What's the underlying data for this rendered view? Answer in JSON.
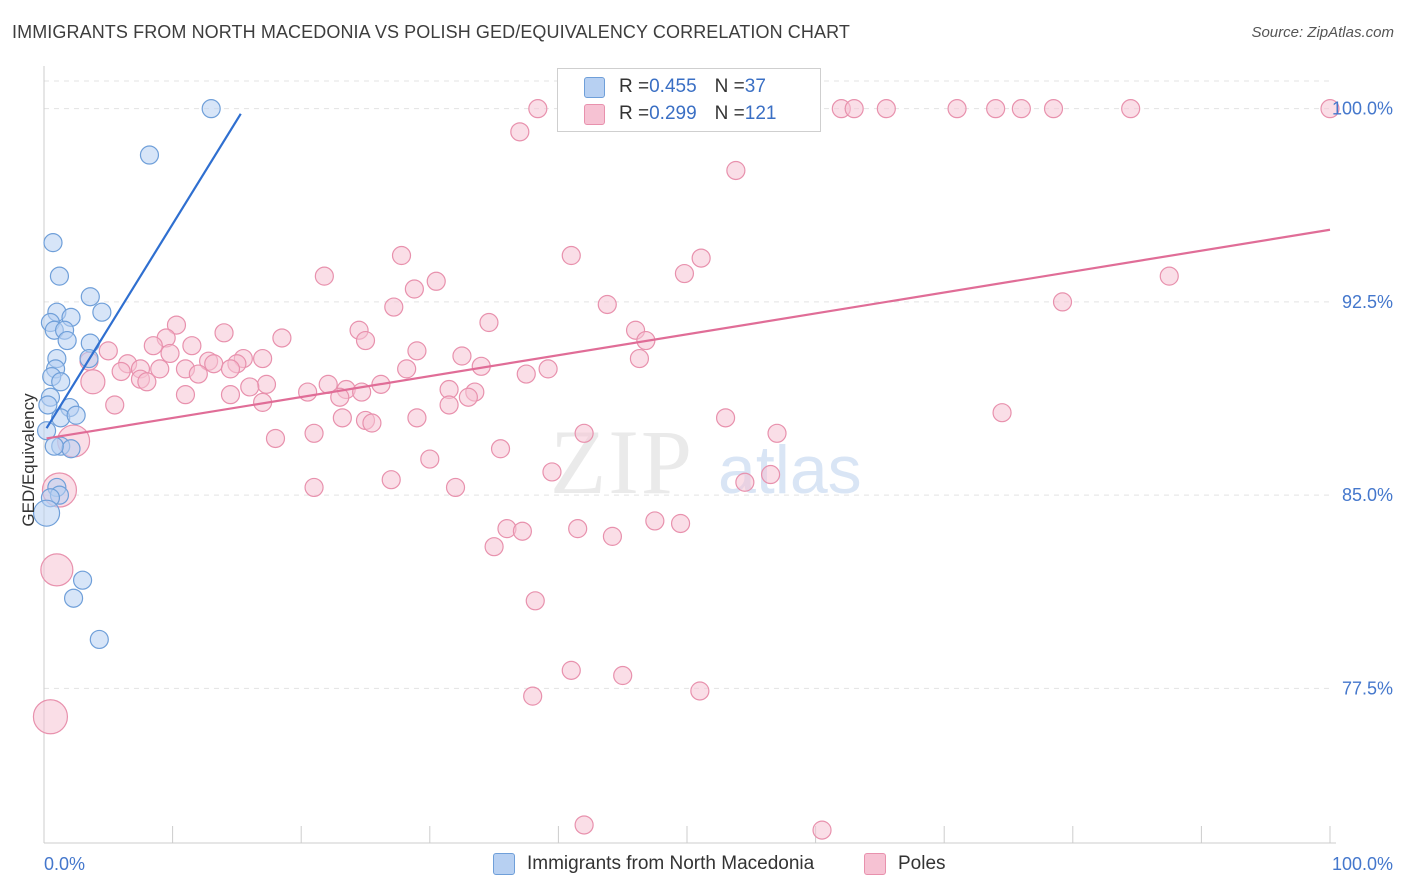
{
  "title": "IMMIGRANTS FROM NORTH MACEDONIA VS POLISH GED/EQUIVALENCY CORRELATION CHART",
  "source": "Source: ZipAtlas.com",
  "watermark": {
    "zip": "ZIP",
    "atlas": "atlas"
  },
  "colors": {
    "blue_fill": "#b7d0f2",
    "blue_stroke": "#6f9fd9",
    "blue_line": "#2f6fd0",
    "pink_fill": "#f6c2d3",
    "pink_stroke": "#e891ad",
    "pink_line": "#e06d97",
    "axis_label": "#4477cc"
  },
  "stats": {
    "blue": {
      "r_label": "R = ",
      "r": "0.455",
      "n_label": "N = ",
      "n": "37"
    },
    "pink": {
      "r_label": "R = ",
      "r": "0.299",
      "n_label": "N = ",
      "n": "121"
    }
  },
  "chart_data": {
    "type": "scatter",
    "title": "IMMIGRANTS FROM NORTH MACEDONIA VS POLISH GED/EQUIVALENCY CORRELATION CHART",
    "xlabel": "",
    "ylabel": "GED/Equivalency",
    "xlim": [
      0,
      100
    ],
    "ylim": [
      71.5,
      101.5
    ],
    "x_tick_labels": [
      "0.0%",
      "100.0%"
    ],
    "y_ticks": [
      77.5,
      85.0,
      92.5,
      100.0
    ],
    "y_tick_labels": [
      "77.5%",
      "85.0%",
      "92.5%",
      "100.0%"
    ],
    "grid": true,
    "legend_position": "bottom-center",
    "series": [
      {
        "name": "Immigrants from North Macedonia",
        "color": "#6f9fd9",
        "trend": {
          "x": [
            0.2,
            15.3
          ],
          "y": [
            87.6,
            99.8
          ]
        },
        "points": [
          {
            "x": 13.0,
            "y": 100.0,
            "s": 9
          },
          {
            "x": 8.2,
            "y": 98.2,
            "s": 9
          },
          {
            "x": 0.7,
            "y": 94.8,
            "s": 9
          },
          {
            "x": 1.2,
            "y": 93.5,
            "s": 9
          },
          {
            "x": 3.6,
            "y": 92.7,
            "s": 9
          },
          {
            "x": 1.0,
            "y": 92.1,
            "s": 9
          },
          {
            "x": 2.1,
            "y": 91.9,
            "s": 9
          },
          {
            "x": 4.5,
            "y": 92.1,
            "s": 9
          },
          {
            "x": 0.5,
            "y": 91.7,
            "s": 9
          },
          {
            "x": 0.8,
            "y": 91.4,
            "s": 9
          },
          {
            "x": 1.6,
            "y": 91.4,
            "s": 9
          },
          {
            "x": 1.8,
            "y": 91.0,
            "s": 9
          },
          {
            "x": 3.6,
            "y": 90.9,
            "s": 9
          },
          {
            "x": 1.0,
            "y": 90.3,
            "s": 9
          },
          {
            "x": 3.5,
            "y": 90.3,
            "s": 9
          },
          {
            "x": 0.9,
            "y": 89.9,
            "s": 9
          },
          {
            "x": 0.6,
            "y": 89.6,
            "s": 9
          },
          {
            "x": 1.3,
            "y": 89.4,
            "s": 9
          },
          {
            "x": 0.5,
            "y": 88.8,
            "s": 9
          },
          {
            "x": 0.3,
            "y": 88.5,
            "s": 9
          },
          {
            "x": 2.0,
            "y": 88.4,
            "s": 9
          },
          {
            "x": 1.3,
            "y": 88.0,
            "s": 9
          },
          {
            "x": 2.5,
            "y": 88.1,
            "s": 9
          },
          {
            "x": 0.2,
            "y": 87.5,
            "s": 9
          },
          {
            "x": 1.3,
            "y": 86.9,
            "s": 9
          },
          {
            "x": 2.1,
            "y": 86.8,
            "s": 9
          },
          {
            "x": 0.8,
            "y": 86.9,
            "s": 9
          },
          {
            "x": 1.0,
            "y": 85.3,
            "s": 9
          },
          {
            "x": 1.2,
            "y": 85.0,
            "s": 9
          },
          {
            "x": 0.5,
            "y": 84.9,
            "s": 9
          },
          {
            "x": 0.2,
            "y": 84.3,
            "s": 13
          },
          {
            "x": 3.0,
            "y": 81.7,
            "s": 9
          },
          {
            "x": 2.3,
            "y": 81.0,
            "s": 9
          },
          {
            "x": 4.3,
            "y": 79.4,
            "s": 9
          }
        ]
      },
      {
        "name": "Poles",
        "color": "#e891ad",
        "trend": {
          "x": [
            0.2,
            100.0
          ],
          "y": [
            87.2,
            95.3
          ]
        },
        "points": [
          {
            "x": 38.4,
            "y": 100.0,
            "s": 9
          },
          {
            "x": 47.5,
            "y": 100.0,
            "s": 9
          },
          {
            "x": 48.0,
            "y": 100.0,
            "s": 9
          },
          {
            "x": 49.2,
            "y": 100.0,
            "s": 9
          },
          {
            "x": 62.0,
            "y": 100.0,
            "s": 9
          },
          {
            "x": 63.0,
            "y": 100.0,
            "s": 9
          },
          {
            "x": 65.5,
            "y": 100.0,
            "s": 9
          },
          {
            "x": 71.0,
            "y": 100.0,
            "s": 9
          },
          {
            "x": 74.0,
            "y": 100.0,
            "s": 9
          },
          {
            "x": 76.0,
            "y": 100.0,
            "s": 9
          },
          {
            "x": 78.5,
            "y": 100.0,
            "s": 9
          },
          {
            "x": 84.5,
            "y": 100.0,
            "s": 9
          },
          {
            "x": 100.0,
            "y": 100.0,
            "s": 9
          },
          {
            "x": 53.0,
            "y": 99.6,
            "s": 9
          },
          {
            "x": 37.0,
            "y": 99.1,
            "s": 9
          },
          {
            "x": 53.8,
            "y": 97.6,
            "s": 9
          },
          {
            "x": 27.8,
            "y": 94.3,
            "s": 9
          },
          {
            "x": 41.0,
            "y": 94.3,
            "s": 9
          },
          {
            "x": 51.1,
            "y": 94.2,
            "s": 9
          },
          {
            "x": 49.8,
            "y": 93.6,
            "s": 9
          },
          {
            "x": 87.5,
            "y": 93.5,
            "s": 9
          },
          {
            "x": 21.8,
            "y": 93.5,
            "s": 9
          },
          {
            "x": 30.5,
            "y": 93.3,
            "s": 9
          },
          {
            "x": 28.8,
            "y": 93.0,
            "s": 9
          },
          {
            "x": 43.8,
            "y": 92.4,
            "s": 9
          },
          {
            "x": 79.2,
            "y": 92.5,
            "s": 9
          },
          {
            "x": 27.2,
            "y": 92.3,
            "s": 9
          },
          {
            "x": 34.6,
            "y": 91.7,
            "s": 9
          },
          {
            "x": 10.3,
            "y": 91.6,
            "s": 9
          },
          {
            "x": 24.5,
            "y": 91.4,
            "s": 9
          },
          {
            "x": 46.0,
            "y": 91.4,
            "s": 9
          },
          {
            "x": 14.0,
            "y": 91.3,
            "s": 9
          },
          {
            "x": 9.5,
            "y": 91.1,
            "s": 9
          },
          {
            "x": 18.5,
            "y": 91.1,
            "s": 9
          },
          {
            "x": 25.0,
            "y": 91.0,
            "s": 9
          },
          {
            "x": 46.8,
            "y": 91.0,
            "s": 9
          },
          {
            "x": 8.5,
            "y": 90.8,
            "s": 9
          },
          {
            "x": 11.5,
            "y": 90.8,
            "s": 9
          },
          {
            "x": 29.0,
            "y": 90.6,
            "s": 9
          },
          {
            "x": 5.0,
            "y": 90.6,
            "s": 9
          },
          {
            "x": 9.8,
            "y": 90.5,
            "s": 9
          },
          {
            "x": 32.5,
            "y": 90.4,
            "s": 9
          },
          {
            "x": 46.3,
            "y": 90.3,
            "s": 9
          },
          {
            "x": 15.5,
            "y": 90.3,
            "s": 9
          },
          {
            "x": 17.0,
            "y": 90.3,
            "s": 9
          },
          {
            "x": 12.8,
            "y": 90.2,
            "s": 9
          },
          {
            "x": 3.5,
            "y": 90.2,
            "s": 9
          },
          {
            "x": 6.5,
            "y": 90.1,
            "s": 9
          },
          {
            "x": 13.2,
            "y": 90.1,
            "s": 9
          },
          {
            "x": 15.0,
            "y": 90.1,
            "s": 9
          },
          {
            "x": 34.0,
            "y": 90.0,
            "s": 9
          },
          {
            "x": 7.5,
            "y": 89.9,
            "s": 9
          },
          {
            "x": 9.0,
            "y": 89.9,
            "s": 9
          },
          {
            "x": 11.0,
            "y": 89.9,
            "s": 9
          },
          {
            "x": 14.5,
            "y": 89.9,
            "s": 9
          },
          {
            "x": 28.2,
            "y": 89.9,
            "s": 9
          },
          {
            "x": 39.2,
            "y": 89.9,
            "s": 9
          },
          {
            "x": 6.0,
            "y": 89.8,
            "s": 9
          },
          {
            "x": 12.0,
            "y": 89.7,
            "s": 9
          },
          {
            "x": 37.5,
            "y": 89.7,
            "s": 9
          },
          {
            "x": 7.5,
            "y": 89.5,
            "s": 9
          },
          {
            "x": 8.0,
            "y": 89.4,
            "s": 9
          },
          {
            "x": 3.8,
            "y": 89.4,
            "s": 12
          },
          {
            "x": 17.3,
            "y": 89.3,
            "s": 9
          },
          {
            "x": 26.2,
            "y": 89.3,
            "s": 9
          },
          {
            "x": 22.1,
            "y": 89.3,
            "s": 9
          },
          {
            "x": 16.0,
            "y": 89.2,
            "s": 9
          },
          {
            "x": 23.5,
            "y": 89.1,
            "s": 9
          },
          {
            "x": 31.5,
            "y": 89.1,
            "s": 9
          },
          {
            "x": 20.5,
            "y": 89.0,
            "s": 9
          },
          {
            "x": 24.7,
            "y": 89.0,
            "s": 9
          },
          {
            "x": 33.5,
            "y": 89.0,
            "s": 9
          },
          {
            "x": 11.0,
            "y": 88.9,
            "s": 9
          },
          {
            "x": 14.5,
            "y": 88.9,
            "s": 9
          },
          {
            "x": 23.0,
            "y": 88.8,
            "s": 9
          },
          {
            "x": 33.0,
            "y": 88.8,
            "s": 9
          },
          {
            "x": 5.5,
            "y": 88.5,
            "s": 9
          },
          {
            "x": 17.0,
            "y": 88.6,
            "s": 9
          },
          {
            "x": 31.5,
            "y": 88.5,
            "s": 9
          },
          {
            "x": 74.5,
            "y": 88.2,
            "s": 9
          },
          {
            "x": 23.2,
            "y": 88.0,
            "s": 9
          },
          {
            "x": 29.0,
            "y": 88.0,
            "s": 9
          },
          {
            "x": 53.0,
            "y": 88.0,
            "s": 9
          },
          {
            "x": 25.0,
            "y": 87.9,
            "s": 9
          },
          {
            "x": 25.5,
            "y": 87.8,
            "s": 9
          },
          {
            "x": 42.0,
            "y": 87.4,
            "s": 9
          },
          {
            "x": 21.0,
            "y": 87.4,
            "s": 9
          },
          {
            "x": 57.0,
            "y": 87.4,
            "s": 9
          },
          {
            "x": 18.0,
            "y": 87.2,
            "s": 9
          },
          {
            "x": 2.3,
            "y": 87.1,
            "s": 16
          },
          {
            "x": 35.5,
            "y": 86.8,
            "s": 9
          },
          {
            "x": 30.0,
            "y": 86.4,
            "s": 9
          },
          {
            "x": 39.5,
            "y": 85.9,
            "s": 9
          },
          {
            "x": 56.5,
            "y": 85.8,
            "s": 9
          },
          {
            "x": 54.5,
            "y": 85.5,
            "s": 9
          },
          {
            "x": 27.0,
            "y": 85.6,
            "s": 9
          },
          {
            "x": 21.0,
            "y": 85.3,
            "s": 9
          },
          {
            "x": 32.0,
            "y": 85.3,
            "s": 9
          },
          {
            "x": 1.2,
            "y": 85.2,
            "s": 17
          },
          {
            "x": 47.5,
            "y": 84.0,
            "s": 9
          },
          {
            "x": 49.5,
            "y": 83.9,
            "s": 9
          },
          {
            "x": 36.0,
            "y": 83.7,
            "s": 9
          },
          {
            "x": 37.2,
            "y": 83.6,
            "s": 9
          },
          {
            "x": 41.5,
            "y": 83.7,
            "s": 9
          },
          {
            "x": 44.2,
            "y": 83.4,
            "s": 9
          },
          {
            "x": 35.0,
            "y": 83.0,
            "s": 9
          },
          {
            "x": 1.0,
            "y": 82.1,
            "s": 16
          },
          {
            "x": 38.2,
            "y": 80.9,
            "s": 9
          },
          {
            "x": 41.0,
            "y": 78.2,
            "s": 9
          },
          {
            "x": 45.0,
            "y": 78.0,
            "s": 9
          },
          {
            "x": 51.0,
            "y": 77.4,
            "s": 9
          },
          {
            "x": 38.0,
            "y": 77.2,
            "s": 9
          },
          {
            "x": 0.5,
            "y": 76.4,
            "s": 17
          },
          {
            "x": 42.0,
            "y": 72.2,
            "s": 9
          },
          {
            "x": 60.5,
            "y": 72.0,
            "s": 9
          }
        ]
      }
    ]
  }
}
